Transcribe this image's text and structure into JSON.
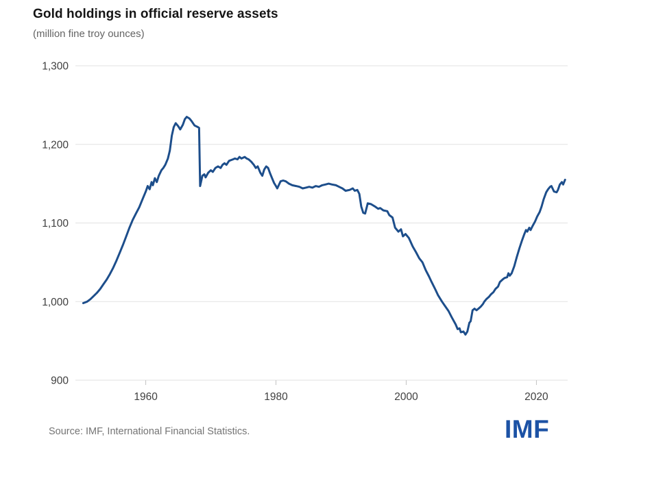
{
  "header": {
    "title": "Gold holdings in official reserve assets",
    "subtitle": "(million fine troy ounces)"
  },
  "footer": {
    "source": "Source: IMF, International Financial Statistics.",
    "logo_text": "IMF",
    "logo_color": "#1c52a5"
  },
  "chart_data": {
    "type": "line",
    "title": "Gold holdings in official reserve assets",
    "subtitle": "(million fine troy ounces)",
    "unit": "million fine troy ounces",
    "grid": "horizontal",
    "legend": "none",
    "line_color": "#1d4e8b",
    "xlim": [
      1949.2,
      2024.8
    ],
    "ylim": [
      900,
      1300
    ],
    "x_ticks": [
      1960,
      1980,
      2000,
      2020
    ],
    "y_ticks": [
      {
        "value": 1300,
        "label": "1,300"
      },
      {
        "value": 1200,
        "label": "1,200"
      },
      {
        "value": 1100,
        "label": "1,100"
      },
      {
        "value": 1000,
        "label": "1,000"
      },
      {
        "value": 900,
        "label": "900"
      }
    ],
    "series": [
      {
        "name": "Gold holdings in official reserve assets",
        "color": "#1d4e8b",
        "points": [
          [
            1950.4,
            998
          ],
          [
            1951,
            1000
          ],
          [
            1951.5,
            1003
          ],
          [
            1952,
            1007
          ],
          [
            1952.5,
            1011
          ],
          [
            1953,
            1016
          ],
          [
            1953.5,
            1022
          ],
          [
            1954,
            1028
          ],
          [
            1954.5,
            1035
          ],
          [
            1955,
            1043
          ],
          [
            1955.5,
            1052
          ],
          [
            1956,
            1062
          ],
          [
            1956.5,
            1072
          ],
          [
            1957,
            1083
          ],
          [
            1957.5,
            1094
          ],
          [
            1958,
            1104
          ],
          [
            1958.5,
            1112
          ],
          [
            1959,
            1120
          ],
          [
            1959.5,
            1130
          ],
          [
            1960,
            1140
          ],
          [
            1960.3,
            1147
          ],
          [
            1960.6,
            1143
          ],
          [
            1960.9,
            1152
          ],
          [
            1961.1,
            1148
          ],
          [
            1961.4,
            1157
          ],
          [
            1961.7,
            1152
          ],
          [
            1962,
            1160
          ],
          [
            1962.4,
            1167
          ],
          [
            1962.7,
            1170
          ],
          [
            1963,
            1174
          ],
          [
            1963.4,
            1182
          ],
          [
            1963.7,
            1192
          ],
          [
            1964,
            1211
          ],
          [
            1964.3,
            1222
          ],
          [
            1964.6,
            1227
          ],
          [
            1965,
            1223
          ],
          [
            1965.3,
            1219
          ],
          [
            1965.7,
            1225
          ],
          [
            1966,
            1232
          ],
          [
            1966.3,
            1235
          ],
          [
            1966.7,
            1233
          ],
          [
            1967,
            1230
          ],
          [
            1967.5,
            1224
          ],
          [
            1968,
            1222
          ],
          [
            1968.2,
            1221
          ],
          [
            1968.35,
            1147
          ],
          [
            1968.7,
            1160
          ],
          [
            1969,
            1162
          ],
          [
            1969.2,
            1158
          ],
          [
            1969.6,
            1164
          ],
          [
            1970,
            1167
          ],
          [
            1970.3,
            1165
          ],
          [
            1970.7,
            1170
          ],
          [
            1971.1,
            1172
          ],
          [
            1971.5,
            1170
          ],
          [
            1971.8,
            1174
          ],
          [
            1972.1,
            1176
          ],
          [
            1972.4,
            1174
          ],
          [
            1972.8,
            1179
          ],
          [
            1973.4,
            1181
          ],
          [
            1973.7,
            1182
          ],
          [
            1974.1,
            1181
          ],
          [
            1974.4,
            1184
          ],
          [
            1974.7,
            1182
          ],
          [
            1975.2,
            1184
          ],
          [
            1975.5,
            1182
          ],
          [
            1975.8,
            1181
          ],
          [
            1976.2,
            1178
          ],
          [
            1976.6,
            1174
          ],
          [
            1976.9,
            1170
          ],
          [
            1977.2,
            1172
          ],
          [
            1977.6,
            1164
          ],
          [
            1977.9,
            1160
          ],
          [
            1978.2,
            1168
          ],
          [
            1978.5,
            1172
          ],
          [
            1978.8,
            1170
          ],
          [
            1979.1,
            1163
          ],
          [
            1979.4,
            1157
          ],
          [
            1979.7,
            1151
          ],
          [
            1980,
            1147
          ],
          [
            1980.2,
            1144
          ],
          [
            1980.7,
            1153
          ],
          [
            1981.1,
            1154
          ],
          [
            1981.5,
            1153
          ],
          [
            1982,
            1150
          ],
          [
            1982.5,
            1148
          ],
          [
            1983.1,
            1147
          ],
          [
            1983.6,
            1146
          ],
          [
            1984.1,
            1144
          ],
          [
            1984.6,
            1145
          ],
          [
            1985.1,
            1146
          ],
          [
            1985.6,
            1145
          ],
          [
            1986.1,
            1147
          ],
          [
            1986.6,
            1146
          ],
          [
            1987.1,
            1148
          ],
          [
            1987.6,
            1149
          ],
          [
            1988.1,
            1150
          ],
          [
            1988.6,
            1149
          ],
          [
            1989.2,
            1148
          ],
          [
            1989.7,
            1146
          ],
          [
            1990.2,
            1144
          ],
          [
            1990.7,
            1141
          ],
          [
            1991.3,
            1142
          ],
          [
            1991.8,
            1144
          ],
          [
            1992.1,
            1141
          ],
          [
            1992.5,
            1142
          ],
          [
            1992.8,
            1137
          ],
          [
            1993.1,
            1121
          ],
          [
            1993.4,
            1113
          ],
          [
            1993.7,
            1112
          ],
          [
            1994.1,
            1125
          ],
          [
            1994.6,
            1124
          ],
          [
            1995.2,
            1121
          ],
          [
            1995.7,
            1118
          ],
          [
            1996,
            1119
          ],
          [
            1996.5,
            1116
          ],
          [
            1997.1,
            1115
          ],
          [
            1997.4,
            1110
          ],
          [
            1997.9,
            1107
          ],
          [
            1998.3,
            1094
          ],
          [
            1998.8,
            1089
          ],
          [
            1999.2,
            1092
          ],
          [
            1999.5,
            1083
          ],
          [
            1999.9,
            1086
          ],
          [
            2000.4,
            1081
          ],
          [
            2001,
            1070
          ],
          [
            2001.5,
            1063
          ],
          [
            2002,
            1055
          ],
          [
            2002.5,
            1050
          ],
          [
            2003,
            1040
          ],
          [
            2003.5,
            1032
          ],
          [
            2003.9,
            1025
          ],
          [
            2004.5,
            1015
          ],
          [
            2004.9,
            1008
          ],
          [
            2005.5,
            1000
          ],
          [
            2006,
            994
          ],
          [
            2006.5,
            988
          ],
          [
            2007,
            980
          ],
          [
            2007.6,
            971
          ],
          [
            2007.9,
            965
          ],
          [
            2008.2,
            966
          ],
          [
            2008.4,
            961
          ],
          [
            2008.8,
            962
          ],
          [
            2009.1,
            958
          ],
          [
            2009.4,
            962
          ],
          [
            2009.7,
            973
          ],
          [
            2009.9,
            975
          ],
          [
            2010.2,
            989
          ],
          [
            2010.5,
            991
          ],
          [
            2010.8,
            989
          ],
          [
            2011.1,
            991
          ],
          [
            2011.5,
            994
          ],
          [
            2011.8,
            997
          ],
          [
            2012,
            1000
          ],
          [
            2012.3,
            1003
          ],
          [
            2012.7,
            1006
          ],
          [
            2013,
            1009
          ],
          [
            2013.4,
            1012
          ],
          [
            2013.7,
            1016
          ],
          [
            2014.1,
            1019
          ],
          [
            2014.4,
            1025
          ],
          [
            2014.8,
            1028
          ],
          [
            2015.1,
            1030
          ],
          [
            2015.5,
            1031
          ],
          [
            2015.7,
            1036
          ],
          [
            2015.9,
            1033
          ],
          [
            2016.2,
            1036
          ],
          [
            2016.6,
            1045
          ],
          [
            2017,
            1057
          ],
          [
            2017.4,
            1068
          ],
          [
            2017.8,
            1078
          ],
          [
            2018.1,
            1085
          ],
          [
            2018.4,
            1091
          ],
          [
            2018.6,
            1089
          ],
          [
            2018.9,
            1094
          ],
          [
            2019.1,
            1091
          ],
          [
            2019.4,
            1096
          ],
          [
            2019.8,
            1102
          ],
          [
            2020.1,
            1108
          ],
          [
            2020.5,
            1114
          ],
          [
            2020.8,
            1121
          ],
          [
            2021.1,
            1130
          ],
          [
            2021.5,
            1139
          ],
          [
            2021.8,
            1143
          ],
          [
            2022.1,
            1146
          ],
          [
            2022.3,
            1147
          ],
          [
            2022.7,
            1140
          ],
          [
            2023.1,
            1139
          ],
          [
            2023.3,
            1142
          ],
          [
            2023.6,
            1149
          ],
          [
            2023.9,
            1152
          ],
          [
            2024.1,
            1149
          ],
          [
            2024.4,
            1155
          ]
        ]
      }
    ]
  }
}
